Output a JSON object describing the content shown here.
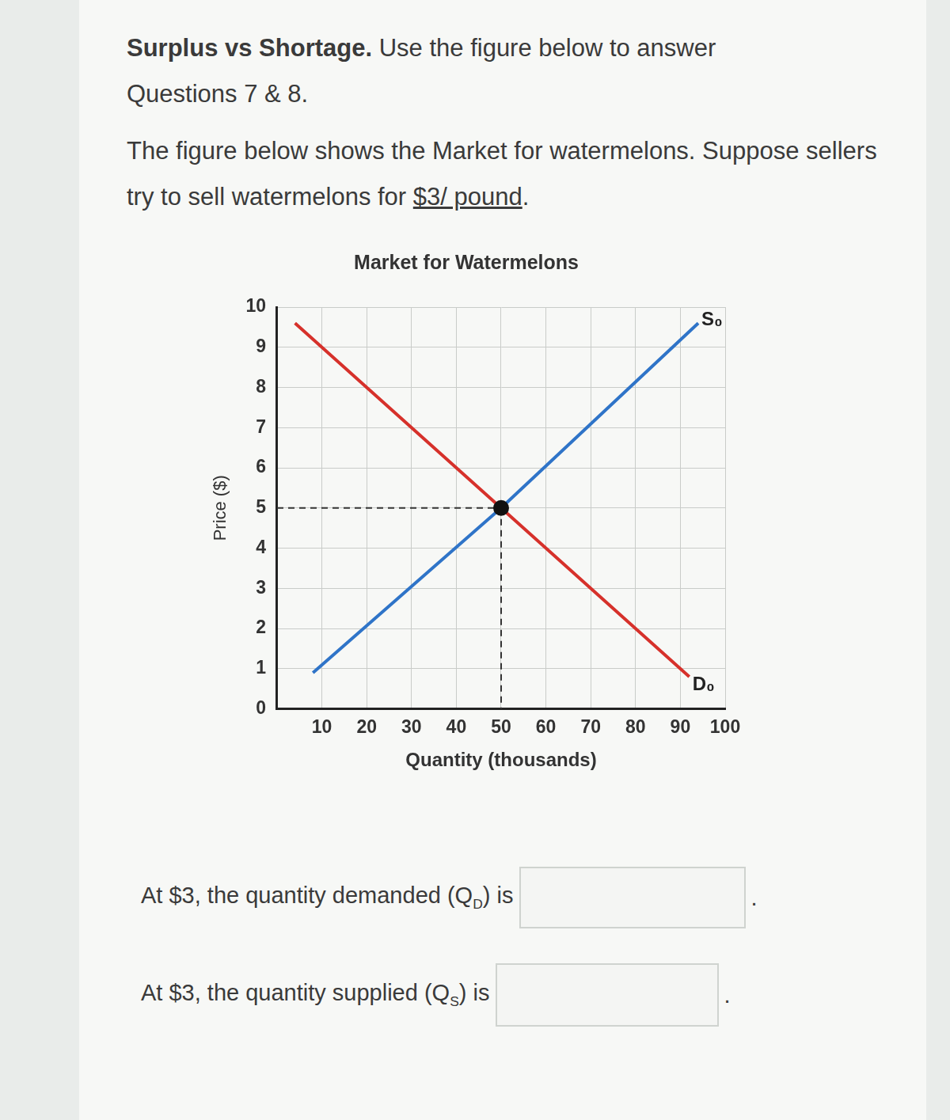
{
  "heading_bold": "Surplus vs Shortage.",
  "heading_text": "Use the figure below to answer Questions 7 & 8.",
  "intro": "The figure below shows the Market for watermelons. Suppose sellers try to sell watermelons for",
  "intro_price": "$3/ pound",
  "intro_end": ".",
  "chart_data": {
    "type": "line",
    "title": "Market for Watermelons",
    "x_label": "Quantity (thousands)",
    "y_label": "Price ($)",
    "xlim": [
      0,
      100
    ],
    "xticks": [
      10,
      20,
      30,
      40,
      50,
      60,
      70,
      80,
      90,
      100
    ],
    "ylim": [
      0,
      10
    ],
    "yticks": [
      0,
      1,
      2,
      3,
      4,
      5,
      6,
      7,
      8,
      9,
      10
    ],
    "grid": true,
    "series": [
      {
        "name": "S₀",
        "color": "#2f74c8",
        "x": [
          8,
          50,
          94
        ],
        "values": [
          0.9,
          5,
          9.6
        ]
      },
      {
        "name": "D₀",
        "color": "#d6312b",
        "x": [
          4,
          50,
          92
        ],
        "values": [
          9.6,
          5,
          0.8
        ]
      }
    ],
    "equilibrium": {
      "x": 50,
      "y": 5
    }
  },
  "questions": [
    {
      "text": "At $3, the quantity demanded (Q",
      "sub": "D",
      "after": ") is",
      "end": "."
    },
    {
      "text": "At $3, the quantity supplied (Q",
      "sub": "S",
      "after": ") is",
      "end": "."
    }
  ]
}
